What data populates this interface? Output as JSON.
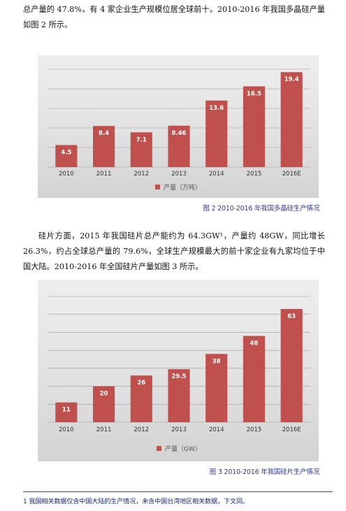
{
  "para1": "总产量的 47.8%，有 4 家企业生产规模位居全球前十。2010-2016 年我国多晶硅产量如图 2 所示。",
  "para2": "硅片方面，2015 年我国硅片总产能约为 64.3GW¹，产量约 48GW，同比增长 26.3%，约占全球总产量的 79.6%，全球生产规模最大的前十家企业有九家均位于中国大陆。2010-2016 年全国硅片产量如图 3 所示。",
  "caption1": "图 2 2010-2016 年我国多晶硅生产情况",
  "caption2": "图 3 2010-2016 年我国硅片生产情况",
  "footnote": "1 我国相关数据仅含中国大陆的生产情况，未含中国台湾地区相关数据，下文同。",
  "colors": {
    "bar": "#c0504d",
    "caption": "#2d3a8c"
  },
  "chart_data": [
    {
      "type": "bar",
      "categories": [
        "2010",
        "2011",
        "2012",
        "2013",
        "2014",
        "2015",
        "2016E"
      ],
      "values": [
        4.5,
        8.4,
        7.1,
        8.46,
        13.6,
        16.5,
        19.4
      ],
      "value_labels": [
        "4.5",
        "8.4",
        "7.1",
        "8.46",
        "13.6",
        "16.5",
        "19.4"
      ],
      "series": [
        {
          "name": "产量（万吨）",
          "values": [
            4.5,
            8.4,
            7.1,
            8.46,
            13.6,
            16.5,
            19.4
          ]
        }
      ],
      "ylim": [
        0,
        20
      ],
      "grid": true,
      "legend": "bottom"
    },
    {
      "type": "bar",
      "categories": [
        "2010",
        "2011",
        "2012",
        "2013",
        "2014",
        "2015",
        "2016E"
      ],
      "values": [
        11,
        20,
        26,
        29.5,
        38,
        48,
        63
      ],
      "value_labels": [
        "11",
        "20",
        "26",
        "29.5",
        "38",
        "48",
        "63"
      ],
      "series": [
        {
          "name": "产量（GW）",
          "values": [
            11,
            20,
            26,
            29.5,
            38,
            48,
            63
          ]
        }
      ],
      "ylim": [
        0,
        70
      ],
      "grid": true,
      "legend": "bottom"
    }
  ]
}
